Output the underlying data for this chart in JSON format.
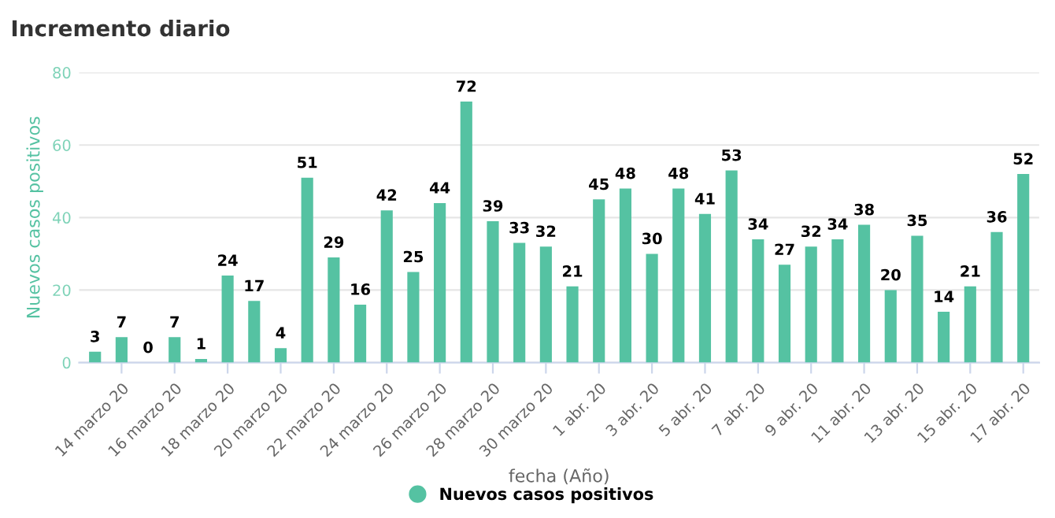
{
  "chart_data": {
    "type": "bar",
    "title": "Incremento diario",
    "xlabel": "fecha (Año)",
    "ylabel": "Nuevos casos positivos",
    "categories": [
      null,
      "14 marzo 20",
      null,
      "16 marzo 20",
      null,
      "18 marzo 20",
      null,
      "20 marzo 20",
      null,
      "22 marzo 20",
      null,
      "24 marzo 20",
      null,
      "26 marzo 20",
      null,
      "28 marzo 20",
      null,
      "30 marzo 20",
      null,
      "1 abr. 20",
      null,
      "3 abr. 20",
      null,
      "5 abr. 20",
      null,
      "7 abr. 20",
      null,
      "9 abr. 20",
      null,
      "11 abr. 20",
      null,
      "13 abr. 20",
      null,
      "15 abr. 20",
      null,
      "17 abr. 20"
    ],
    "series": [
      {
        "name": "Nuevos casos positivos",
        "color": "#55c2a2",
        "values": [
          3,
          7,
          0,
          7,
          1,
          24,
          17,
          4,
          51,
          29,
          16,
          42,
          25,
          44,
          72,
          39,
          33,
          32,
          21,
          45,
          48,
          30,
          48,
          41,
          53,
          34,
          27,
          32,
          34,
          38,
          20,
          35,
          14,
          21,
          36,
          52
        ]
      }
    ],
    "ylim": [
      0,
      80
    ],
    "yticks": [
      0,
      20,
      40,
      60,
      80
    ],
    "grid": "y",
    "legend": "bottom",
    "data_labels": true
  }
}
